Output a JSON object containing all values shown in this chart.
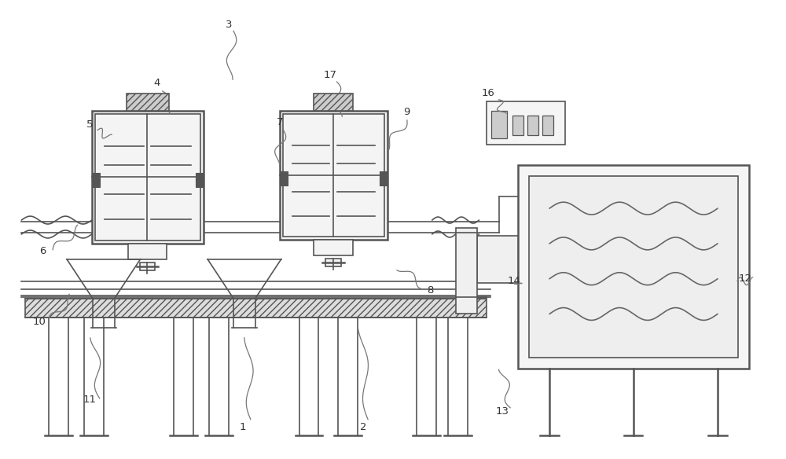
{
  "bg_color": "#ffffff",
  "line_color": "#555555",
  "label_color": "#333333",
  "fig_width": 10.0,
  "fig_height": 5.84,
  "dpi": 100
}
